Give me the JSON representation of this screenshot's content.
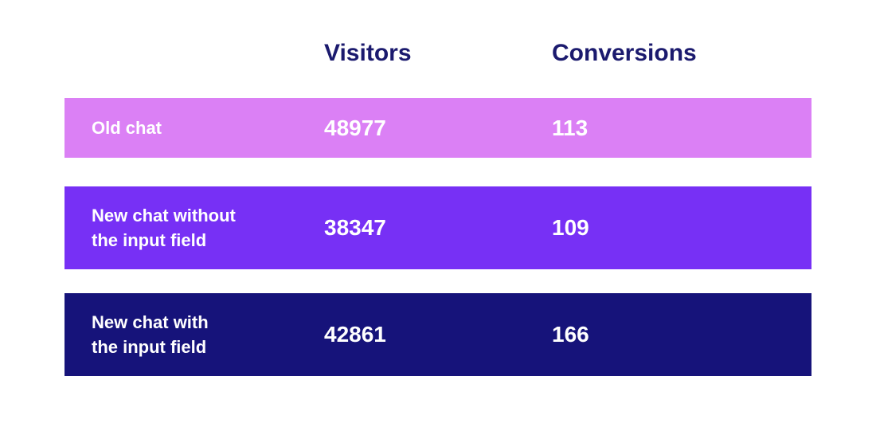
{
  "table": {
    "header": [
      "Visitors",
      "Conversions"
    ],
    "rows": [
      {
        "label": [
          "Old chat"
        ],
        "visitors": 48977,
        "conversions": 113
      },
      {
        "label": [
          "New chat without",
          "the input field"
        ],
        "visitors": 38347,
        "conversions": 109
      },
      {
        "label": [
          "New chat with",
          "the input field"
        ],
        "visitors": 42861,
        "conversions": 166
      }
    ]
  }
}
